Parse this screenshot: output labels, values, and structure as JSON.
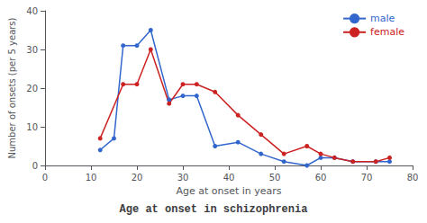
{
  "chart_data": {
    "type": "line",
    "title": "Age at onset in schizophrenia",
    "xlabel": "Age at onset in years",
    "ylabel": "Number of onsets (per 5 years)",
    "series": [
      {
        "name": "male",
        "color": "#3366cc",
        "x": [
          12,
          15,
          17,
          20,
          23,
          27,
          30,
          33,
          37,
          42,
          47,
          52,
          57,
          60,
          63,
          67,
          72,
          75
        ],
        "values": [
          4,
          7,
          31,
          31,
          35,
          17,
          18,
          18,
          5,
          6,
          3,
          1,
          0,
          2,
          2,
          1,
          1,
          1
        ]
      },
      {
        "name": "female",
        "color": "#cc2222",
        "x": [
          12,
          17,
          20,
          23,
          27,
          30,
          33,
          37,
          42,
          47,
          52,
          57,
          60,
          63,
          67,
          72,
          75
        ],
        "values": [
          7,
          21,
          21,
          30,
          16,
          21,
          21,
          19,
          13,
          8,
          3,
          5,
          3,
          2,
          1,
          1,
          2
        ]
      }
    ],
    "xlim": [
      0,
      80
    ],
    "xticks": [
      0,
      10,
      20,
      30,
      40,
      50,
      60,
      70,
      80
    ],
    "ylim": [
      0,
      40
    ],
    "yticks": [
      0,
      10,
      20,
      30,
      40
    ],
    "marker": "circle",
    "legend": "upper right",
    "grid": false
  }
}
